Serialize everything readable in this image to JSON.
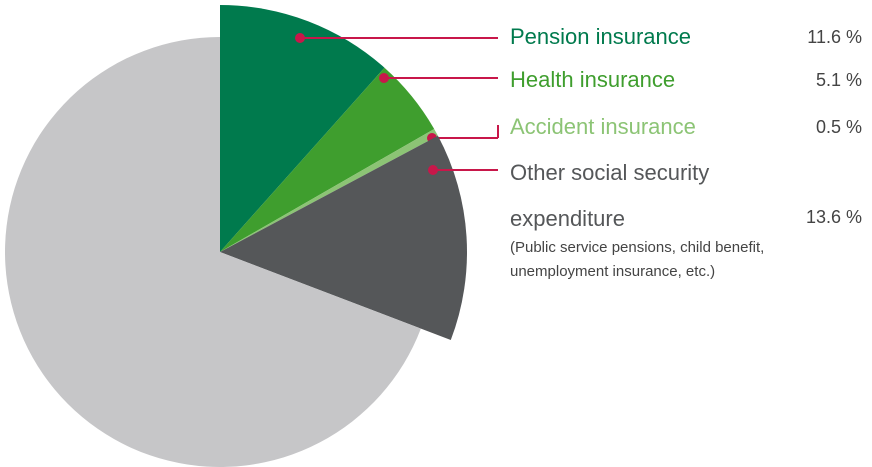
{
  "chart_data": {
    "type": "pie",
    "categories": [
      "Pension insurance",
      "Health insurance",
      "Accident insurance",
      "Other social security expenditure",
      null
    ],
    "values": [
      11.6,
      5.1,
      0.5,
      13.6,
      69.2
    ],
    "value_labels": [
      "11.6 %",
      "5.1 %",
      "0.5 %",
      "13.6 %",
      null
    ],
    "colors": [
      "#007a4d",
      "#3f9e2e",
      "#8cc475",
      "#555759",
      "#c6c6c8"
    ],
    "annotation": "(Public service pensions, child benefit, unemployment insurance, etc.)"
  }
}
